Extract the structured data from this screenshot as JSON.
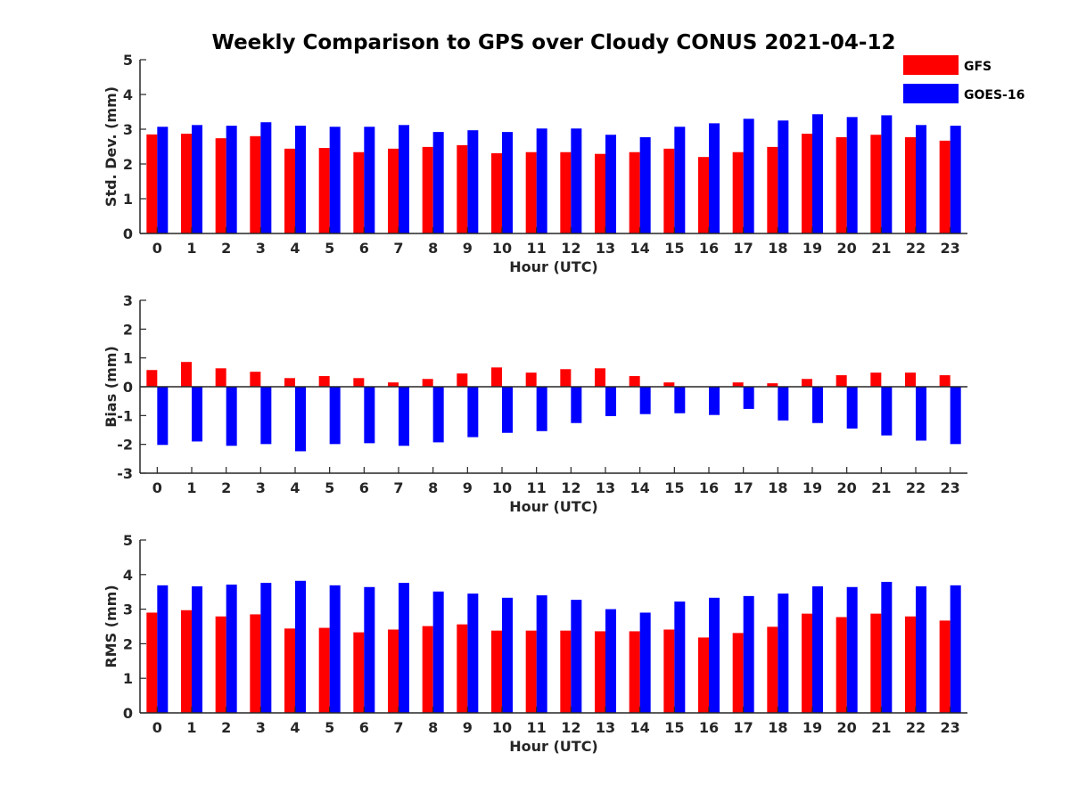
{
  "title": "Weekly Comparison to GPS over Cloudy CONUS 2021-04-12",
  "legend": [
    {
      "name": "GFS",
      "color": "#ff0000"
    },
    {
      "name": "GOES-16",
      "color": "#0000ff"
    }
  ],
  "chart_data": [
    {
      "type": "bar",
      "xlabel": "Hour (UTC)",
      "ylabel": "Std. Dev. (mm)",
      "ylim": [
        0,
        5
      ],
      "yticks": [
        0,
        1,
        2,
        3,
        4,
        5
      ],
      "categories": [
        "0",
        "1",
        "2",
        "3",
        "4",
        "5",
        "6",
        "7",
        "8",
        "9",
        "10",
        "11",
        "12",
        "13",
        "14",
        "15",
        "16",
        "17",
        "18",
        "19",
        "20",
        "21",
        "22",
        "23"
      ],
      "series": [
        {
          "name": "GFS",
          "color": "#ff0000",
          "values": [
            2.85,
            2.87,
            2.74,
            2.8,
            2.44,
            2.46,
            2.34,
            2.44,
            2.49,
            2.54,
            2.31,
            2.34,
            2.34,
            2.29,
            2.34,
            2.44,
            2.2,
            2.34,
            2.49,
            2.87,
            2.77,
            2.84,
            2.77,
            2.67
          ]
        },
        {
          "name": "GOES-16",
          "color": "#0000ff",
          "values": [
            3.07,
            3.12,
            3.1,
            3.2,
            3.1,
            3.07,
            3.07,
            3.12,
            2.92,
            2.97,
            2.92,
            3.02,
            3.02,
            2.84,
            2.77,
            3.07,
            3.17,
            3.3,
            3.25,
            3.43,
            3.35,
            3.4,
            3.12,
            3.1
          ]
        }
      ]
    },
    {
      "type": "bar",
      "xlabel": "Hour (UTC)",
      "ylabel": "Bias (mm)",
      "ylim": [
        -3,
        3
      ],
      "yticks": [
        -3,
        -2,
        -1,
        0,
        1,
        2,
        3
      ],
      "categories": [
        "0",
        "1",
        "2",
        "3",
        "4",
        "5",
        "6",
        "7",
        "8",
        "9",
        "10",
        "11",
        "12",
        "13",
        "14",
        "15",
        "16",
        "17",
        "18",
        "19",
        "20",
        "21",
        "22",
        "23"
      ],
      "series": [
        {
          "name": "GFS",
          "color": "#ff0000",
          "values": [
            0.58,
            0.86,
            0.64,
            0.52,
            0.3,
            0.37,
            0.3,
            0.15,
            0.27,
            0.46,
            0.67,
            0.49,
            0.61,
            0.64,
            0.37,
            0.15,
            0.0,
            0.15,
            0.12,
            0.27,
            0.4,
            0.49,
            0.49,
            0.4
          ]
        },
        {
          "name": "GOES-16",
          "color": "#0000ff",
          "values": [
            -2.02,
            -1.9,
            -2.05,
            -1.99,
            -2.24,
            -1.99,
            -1.96,
            -2.05,
            -1.93,
            -1.75,
            -1.6,
            -1.54,
            -1.26,
            -1.02,
            -0.95,
            -0.92,
            -0.98,
            -0.77,
            -1.17,
            -1.26,
            -1.45,
            -1.69,
            -1.87,
            -1.99
          ]
        }
      ]
    },
    {
      "type": "bar",
      "xlabel": "Hour (UTC)",
      "ylabel": "RMS (mm)",
      "ylim": [
        0,
        5
      ],
      "yticks": [
        0,
        1,
        2,
        3,
        4,
        5
      ],
      "categories": [
        "0",
        "1",
        "2",
        "3",
        "4",
        "5",
        "6",
        "7",
        "8",
        "9",
        "10",
        "11",
        "12",
        "13",
        "14",
        "15",
        "16",
        "17",
        "18",
        "19",
        "20",
        "21",
        "22",
        "23"
      ],
      "series": [
        {
          "name": "GFS",
          "color": "#ff0000",
          "values": [
            2.9,
            2.97,
            2.79,
            2.85,
            2.44,
            2.46,
            2.33,
            2.41,
            2.51,
            2.56,
            2.38,
            2.38,
            2.38,
            2.36,
            2.36,
            2.41,
            2.18,
            2.31,
            2.49,
            2.87,
            2.77,
            2.87,
            2.79,
            2.67
          ]
        },
        {
          "name": "GOES-16",
          "color": "#0000ff",
          "values": [
            3.69,
            3.66,
            3.71,
            3.76,
            3.82,
            3.69,
            3.64,
            3.76,
            3.51,
            3.45,
            3.33,
            3.4,
            3.27,
            3.0,
            2.9,
            3.22,
            3.33,
            3.38,
            3.45,
            3.66,
            3.64,
            3.79,
            3.66,
            3.69
          ]
        }
      ]
    }
  ]
}
